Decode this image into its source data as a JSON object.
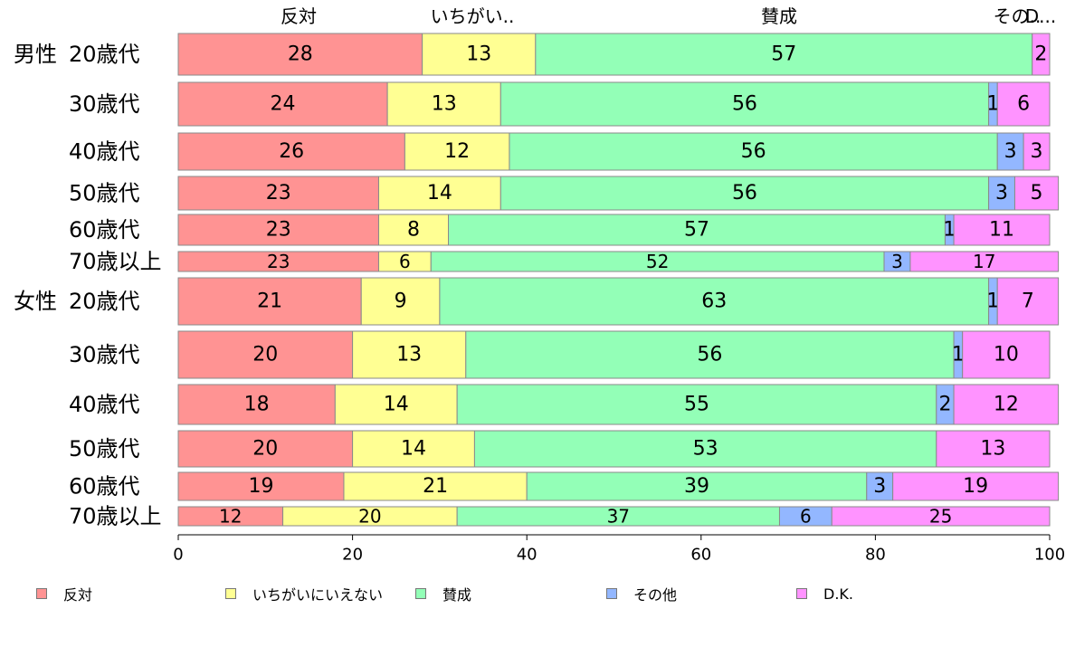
{
  "chart_data": {
    "type": "bar",
    "orientation": "horizontal",
    "stacked": true,
    "title": "",
    "xlabel": "",
    "ylabel": "",
    "xlim": [
      0,
      100
    ],
    "x_ticks": [
      "0",
      "20",
      "40",
      "60",
      "80",
      "100"
    ],
    "grid": false,
    "legend_position": "bottom",
    "column_headers": [
      "反対",
      "いちがい..",
      "賛成",
      "その..",
      "D..."
    ],
    "categories": [
      {
        "group": "男性",
        "label": "20歳代"
      },
      {
        "group": "",
        "label": "30歳代"
      },
      {
        "group": "",
        "label": "40歳代"
      },
      {
        "group": "",
        "label": "50歳代"
      },
      {
        "group": "",
        "label": "60歳代"
      },
      {
        "group": "",
        "label": "70歳以上"
      },
      {
        "group": "女性",
        "label": "20歳代"
      },
      {
        "group": "",
        "label": "30歳代"
      },
      {
        "group": "",
        "label": "40歳代"
      },
      {
        "group": "",
        "label": "50歳代"
      },
      {
        "group": "",
        "label": "60歳代"
      },
      {
        "group": "",
        "label": "70歳以上"
      }
    ],
    "series": [
      {
        "name": "反対",
        "color": "#ff9393",
        "values": [
          28,
          24,
          26,
          23,
          23,
          23,
          21,
          20,
          18,
          20,
          19,
          12
        ]
      },
      {
        "name": "いちがいにいえない",
        "color": "#ffff93",
        "values": [
          13,
          13,
          12,
          14,
          8,
          6,
          9,
          13,
          14,
          14,
          21,
          20
        ]
      },
      {
        "name": "賛成",
        "color": "#93ffb7",
        "values": [
          57,
          56,
          56,
          56,
          57,
          52,
          63,
          56,
          55,
          53,
          39,
          37
        ]
      },
      {
        "name": "その他",
        "color": "#93b7ff",
        "values": [
          0,
          1,
          3,
          3,
          1,
          3,
          1,
          1,
          2,
          0,
          3,
          6
        ]
      },
      {
        "name": "D.K.",
        "color": "#ff93ff",
        "values": [
          2,
          6,
          3,
          5,
          11,
          17,
          7,
          10,
          12,
          13,
          19,
          25
        ]
      }
    ]
  }
}
